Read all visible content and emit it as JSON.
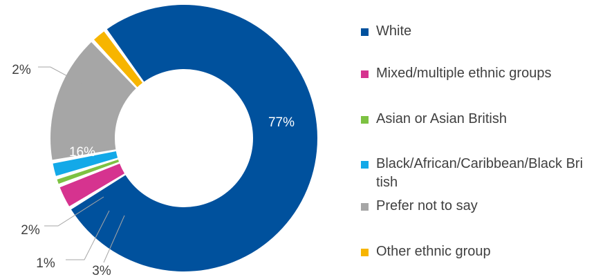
{
  "chart_data": {
    "type": "pie",
    "donut": true,
    "title": "",
    "legend_position": "right",
    "categories": [
      "White",
      "Mixed/multiple ethnic groups",
      "Asian or Asian British",
      "Black/African/Caribbean/Black British",
      "Prefer not to say",
      "Other ethnic group"
    ],
    "values": [
      77,
      3,
      1,
      2,
      16,
      2
    ],
    "labels": [
      "77%",
      "3%",
      "1%",
      "2%",
      "16%",
      "2%"
    ],
    "colors": [
      "#00519D",
      "#D6338F",
      "#7DC242",
      "#13A9E8",
      "#A6A6A6",
      "#F7B500"
    ]
  }
}
